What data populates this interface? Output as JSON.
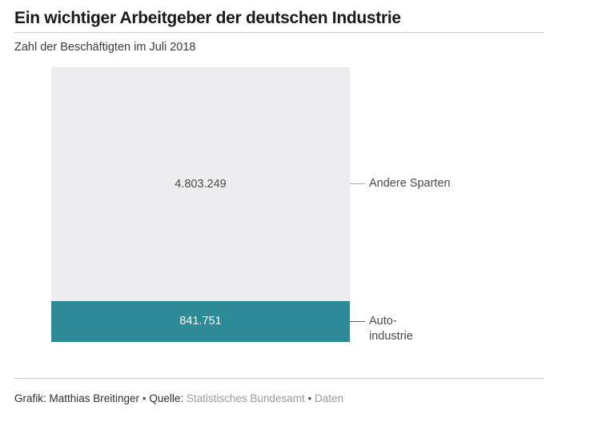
{
  "header": {
    "title": "Ein wichtiger Arbeitgeber der deutschen Industrie",
    "subtitle": "Zahl der Beschäftigten im Juli 2018"
  },
  "chart_data": {
    "type": "bar",
    "variant": "single-stacked-column",
    "title": "Ein wichtiger Arbeitgeber der deutschen Industrie",
    "subtitle": "Zahl der Beschäftigten im Juli 2018",
    "grid": false,
    "axes": "none",
    "annotation_position": "right",
    "segments": [
      {
        "name": "Andere Sparten",
        "value": 4803249,
        "value_label": "4.803.249",
        "annotation": "Andere Sparten",
        "color": "#ededef",
        "value_text_color": "#4b4b4b",
        "tick_color": "#ababab"
      },
      {
        "name": "Autoindustrie",
        "value": 841751,
        "value_label": "841.751",
        "annotation": "Auto-\nindustrie",
        "color": "#2e8a96",
        "value_text_color": "#ffffff",
        "tick_color": "#5a5a5a"
      }
    ]
  },
  "footer": {
    "credit": "Grafik: Matthias Breitinger",
    "dot": "•",
    "source_label": "Quelle:",
    "source_link": "Statistisches Bundesamt",
    "data_link": "Daten"
  }
}
